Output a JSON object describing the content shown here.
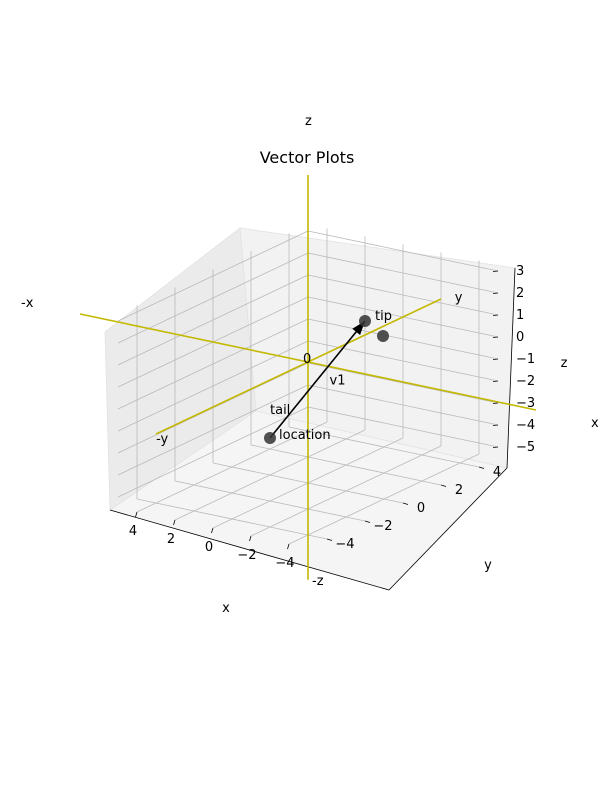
{
  "figure": {
    "title": "Vector Plots",
    "axis_labels": {
      "x": "x",
      "y": "y",
      "z": "z"
    }
  },
  "chart_data": {
    "type": "vector3d",
    "title": "Vector Plots",
    "xlabel": "x",
    "ylabel": "y",
    "zlabel": "z",
    "xlim": [
      -5,
      5
    ],
    "ylim": [
      -5,
      5
    ],
    "zlim": [
      -5.5,
      3.3
    ],
    "x_ticks": [
      -4,
      -2,
      0,
      2,
      4
    ],
    "y_ticks": [
      -4,
      -2,
      0,
      2,
      4
    ],
    "z_ticks": [
      -5,
      -4,
      -3,
      -2,
      -1,
      0,
      1,
      2,
      3
    ],
    "reference_axes": {
      "color": "#c4b800",
      "labels": [
        "x",
        "-x",
        "y",
        "-y",
        "z",
        "-z"
      ],
      "origin_label": "0"
    },
    "vectors": [
      {
        "name": "v1",
        "tail": [
          4,
          2,
          -5
        ],
        "tip": [
          -4,
          -1,
          3
        ],
        "tail_label": "tail",
        "location_label": "location",
        "tip_label": "tip"
      }
    ]
  }
}
